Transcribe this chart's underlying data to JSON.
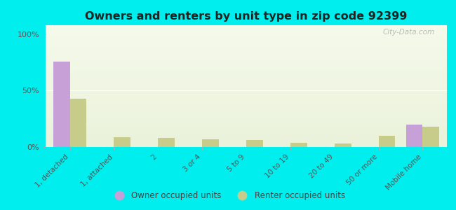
{
  "title": "Owners and renters by unit type in zip code 92399",
  "categories": [
    "1, detached",
    "1, attached",
    "2",
    "3 or 4",
    "5 to 9",
    "10 to 19",
    "20 to 49",
    "50 or more",
    "Mobile home"
  ],
  "owner_values": [
    76,
    0,
    0,
    0,
    0,
    0,
    0,
    0,
    20
  ],
  "renter_values": [
    43,
    9,
    8,
    7,
    6,
    4,
    3,
    10,
    18
  ],
  "owner_color": "#c8a0d8",
  "renter_color": "#c8cc8a",
  "background_color": "#00eeee",
  "yticks": [
    0,
    50,
    100
  ],
  "ylabels": [
    "0%",
    "50%",
    "100%"
  ],
  "ylim": [
    0,
    108
  ],
  "bar_width": 0.38,
  "watermark": "City-Data.com",
  "legend_owner": "Owner occupied units",
  "legend_renter": "Renter occupied units"
}
